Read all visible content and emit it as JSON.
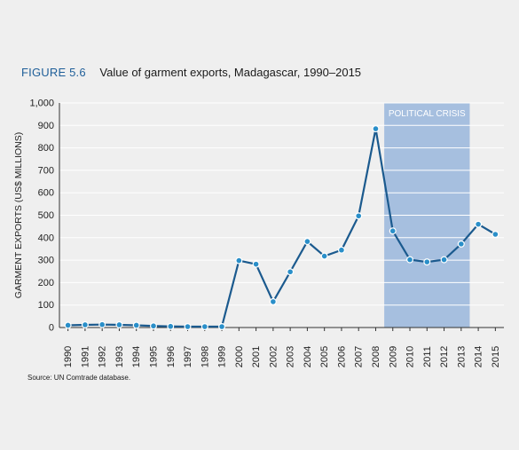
{
  "figure": {
    "label": "FIGURE 5.6",
    "title": "Value of garment exports, Madagascar, 1990–2015",
    "source": "Source: UN Comtrade database."
  },
  "colors": {
    "line": "#1b5a8e",
    "marker": "#2a8fc9",
    "marker_edge": "#ffffff",
    "shade": "#a6bfdf",
    "grid": "#ffffff",
    "axis": "#333333",
    "title_accent": "#1f5f99"
  },
  "chart_data": {
    "type": "line",
    "title": "Value of garment exports, Madagascar, 1990–2015",
    "xlabel": "",
    "ylabel": "GARMENT EXPORTS (US$ MILLIONS)",
    "ylim": [
      0,
      1000
    ],
    "yticks": [
      0,
      100,
      200,
      300,
      400,
      500,
      600,
      700,
      800,
      900,
      1000
    ],
    "ytick_labels": [
      "0",
      "100",
      "200",
      "300",
      "400",
      "500",
      "600",
      "700",
      "800",
      "900",
      "1,000"
    ],
    "grid": true,
    "categories": [
      "1990",
      "1991",
      "1992",
      "1993",
      "1994",
      "1995",
      "1996",
      "1997",
      "1998",
      "1999",
      "2000",
      "2001",
      "2002",
      "2003",
      "2004",
      "2005",
      "2006",
      "2007",
      "2008",
      "2009",
      "2010",
      "2011",
      "2012",
      "2013",
      "2014",
      "2015"
    ],
    "series": [
      {
        "values": [
          10,
          12,
          13,
          12,
          10,
          7,
          5,
          4,
          4,
          4,
          298,
          282,
          115,
          248,
          383,
          318,
          345,
          497,
          885,
          430,
          302,
          292,
          302,
          372,
          460,
          415
        ]
      }
    ],
    "annotations": [
      {
        "text": "POLITICAL CRISIS",
        "type": "shaded-band",
        "from": "2008",
        "to": "2013"
      }
    ]
  }
}
